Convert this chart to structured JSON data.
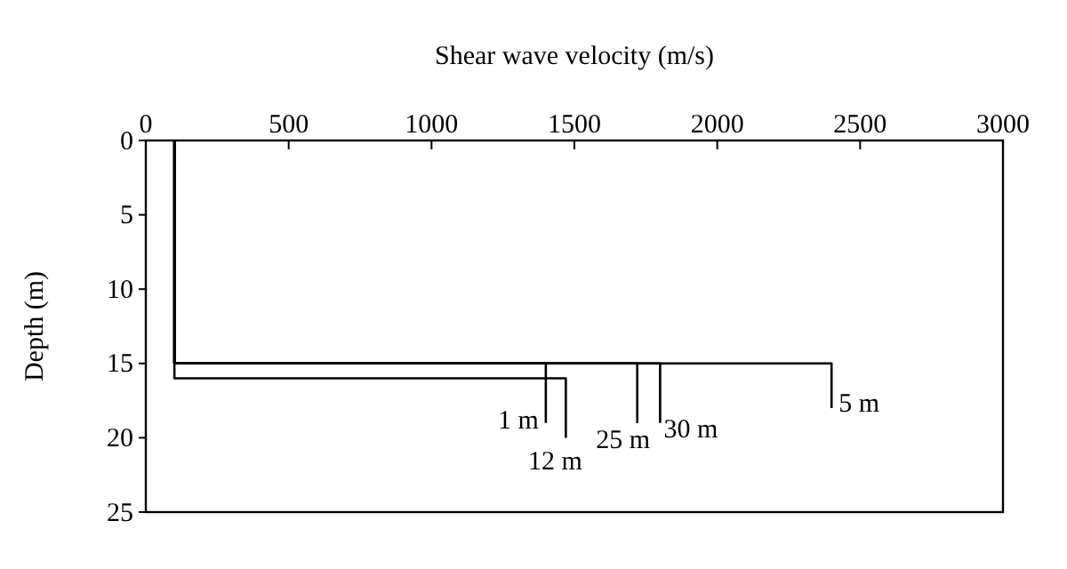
{
  "chart_data": {
    "type": "line",
    "xlabel": "Shear wave velocity (m/s)",
    "ylabel": "Depth (m)",
    "xlim": [
      0,
      3000
    ],
    "xticks": [
      0,
      500,
      1000,
      1500,
      2000,
      2500,
      3000
    ],
    "ylim": [
      25,
      0
    ],
    "yticks": [
      0,
      5,
      10,
      15,
      20,
      25
    ],
    "grid": false,
    "marker": "none",
    "line_style": "solid",
    "series": [
      {
        "name": "1 m",
        "color": "#000000",
        "x": [
          100,
          100,
          1400,
          1400
        ],
        "values": [
          0,
          15,
          15,
          19
        ]
      },
      {
        "name": "12 m",
        "color": "#000000",
        "x": [
          100,
          100,
          1470,
          1470
        ],
        "values": [
          0,
          16,
          16,
          20
        ]
      },
      {
        "name": "25 m",
        "color": "#000000",
        "x": [
          100,
          100,
          1720,
          1720
        ],
        "values": [
          0,
          15,
          15,
          19
        ]
      },
      {
        "name": "30 m",
        "color": "#000000",
        "x": [
          100,
          100,
          1800,
          1800
        ],
        "values": [
          0,
          15,
          15,
          19
        ]
      },
      {
        "name": "5 m",
        "color": "#000000",
        "x": [
          100,
          100,
          2400,
          2400
        ],
        "values": [
          0,
          15,
          15,
          18
        ]
      }
    ]
  }
}
